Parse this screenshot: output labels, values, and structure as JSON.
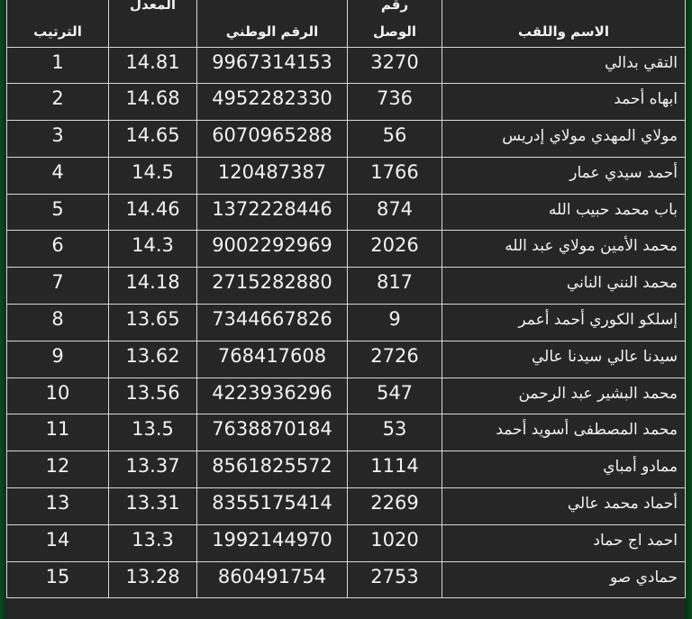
{
  "headers": {
    "rank": "الترتيب",
    "average": "المعدل",
    "national_id": "الرقم الوطني",
    "receipt_line1": "رقم",
    "receipt_line2": "الوصل",
    "name": "الاسم واللقب"
  },
  "rows": [
    {
      "rank": "1",
      "average": "14.81",
      "national_id": "9967314153",
      "receipt": "3270",
      "name": "التقي بدالي"
    },
    {
      "rank": "2",
      "average": "14.68",
      "national_id": "4952282330",
      "receipt": "736",
      "name": "ابهاه أحمد"
    },
    {
      "rank": "3",
      "average": "14.65",
      "national_id": "6070965288",
      "receipt": "56",
      "name": "مولاي المهدي مولاي إدريس"
    },
    {
      "rank": "4",
      "average": "14.5",
      "national_id": "120487387",
      "receipt": "1766",
      "name": "أحمد سيدي عمار"
    },
    {
      "rank": "5",
      "average": "14.46",
      "national_id": "1372228446",
      "receipt": "874",
      "name": "باب محمد حبيب الله"
    },
    {
      "rank": "6",
      "average": "14.3",
      "national_id": "9002292969",
      "receipt": "2026",
      "name": "محمد الأمين مولاي عبد الله"
    },
    {
      "rank": "7",
      "average": "14.18",
      "national_id": "2715282880",
      "receipt": "817",
      "name": "محمد النني الناني"
    },
    {
      "rank": "8",
      "average": "13.65",
      "national_id": "7344667826",
      "receipt": "9",
      "name": "إسلكو الكوري أحمد أعمر"
    },
    {
      "rank": "9",
      "average": "13.62",
      "national_id": "768417608",
      "receipt": "2726",
      "name": "سيدنا عالي سيدنا عالي"
    },
    {
      "rank": "10",
      "average": "13.56",
      "national_id": "4223936296",
      "receipt": "547",
      "name": "محمد البشير عبد الرحمن"
    },
    {
      "rank": "11",
      "average": "13.5",
      "national_id": "7638870184",
      "receipt": "53",
      "name": "محمد المصطفى أسويد أحمد"
    },
    {
      "rank": "12",
      "average": "13.37",
      "national_id": "8561825572",
      "receipt": "1114",
      "name": "ممادو أمباي"
    },
    {
      "rank": "13",
      "average": "13.31",
      "national_id": "8355175414",
      "receipt": "2269",
      "name": "أحماد محمد عالي"
    },
    {
      "rank": "14",
      "average": "13.3",
      "national_id": "1992144970",
      "receipt": "1020",
      "name": "احمد اج حماد"
    },
    {
      "rank": "15",
      "average": "13.28",
      "national_id": "860491754",
      "receipt": "2753",
      "name": "حمادي صو"
    }
  ]
}
